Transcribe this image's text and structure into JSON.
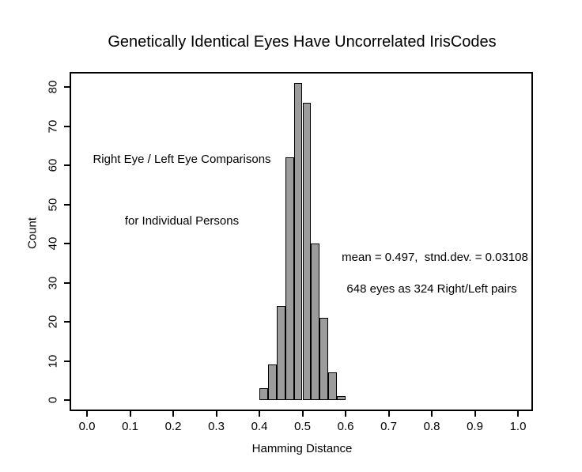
{
  "title": "Genetically Identical Eyes Have Uncorrelated IrisCodes",
  "chart_data": {
    "type": "bar",
    "subtype": "histogram",
    "title": "Genetically Identical Eyes Have Uncorrelated IrisCodes",
    "xlabel": "Hamming Distance",
    "ylabel": "Count",
    "bins": {
      "start": 0.4,
      "bin_width": 0.02,
      "end": 0.6
    },
    "bin_edges": [
      0.4,
      0.42,
      0.44,
      0.46,
      0.48,
      0.5,
      0.52,
      0.54,
      0.56,
      0.58,
      0.6
    ],
    "counts": [
      3,
      9,
      24,
      62,
      81,
      76,
      40,
      21,
      7,
      1
    ],
    "x_axis": {
      "min": 0.0,
      "max": 1.0,
      "ticks": [
        0.0,
        0.1,
        0.2,
        0.3,
        0.4,
        0.5,
        0.6,
        0.7,
        0.8,
        0.9,
        1.0
      ],
      "tick_labels": [
        "0.0",
        "0.1",
        "0.2",
        "0.3",
        "0.4",
        "0.5",
        "0.6",
        "0.7",
        "0.8",
        "0.9",
        "1.0"
      ]
    },
    "y_axis": {
      "min": 0,
      "max": 80,
      "ticks": [
        0,
        10,
        20,
        30,
        40,
        50,
        60,
        70,
        80
      ],
      "tick_labels": [
        "0",
        "10",
        "20",
        "30",
        "40",
        "50",
        "60",
        "70",
        "80"
      ],
      "tick_label_rotation_deg": -90
    },
    "grid": "off",
    "legend": "none",
    "frame": "full-box",
    "bar_fill": "#9c9c9c",
    "bar_stroke": "#000000",
    "annotations": [
      {
        "text": "Right Eye / Left Eye Comparisons"
      },
      {
        "text": "for Individual Persons"
      },
      {
        "text": "mean = 0.497,  stnd.dev. = 0.03108"
      },
      {
        "text": "648 eyes as 324 Right/Left pairs"
      }
    ],
    "stats": {
      "mean": 0.497,
      "stnd_dev": 0.03108,
      "eyes": 648,
      "pairs": 324
    }
  }
}
